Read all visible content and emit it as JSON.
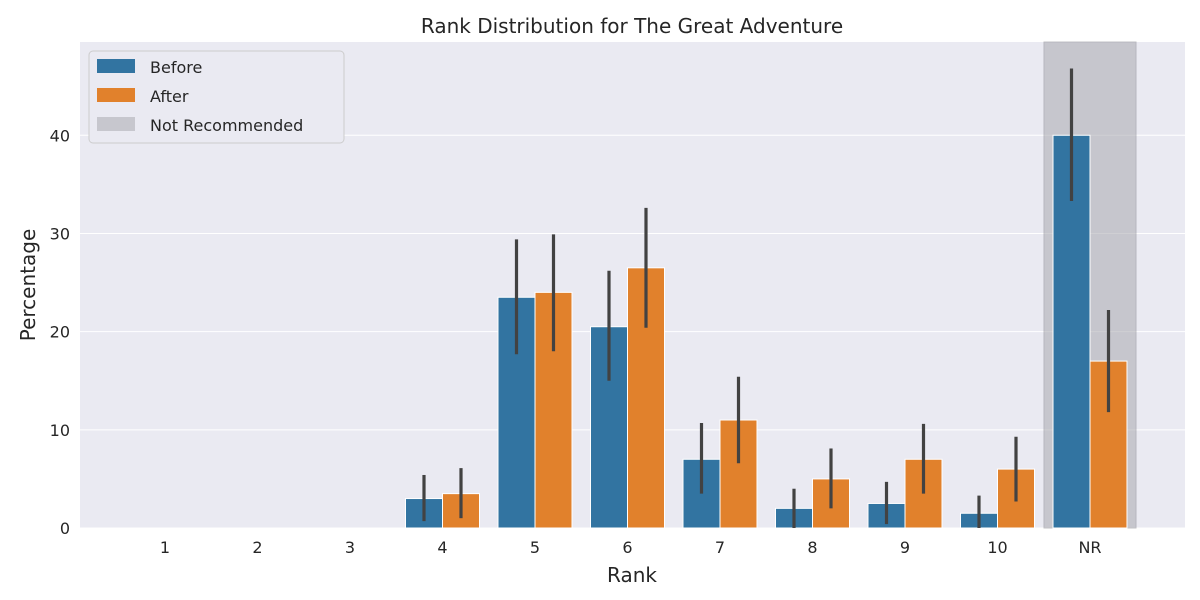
{
  "chart_data": {
    "type": "bar",
    "title": "Rank Distribution for The Great Adventure",
    "xlabel": "Rank",
    "ylabel": "Percentage",
    "categories": [
      "1",
      "2",
      "3",
      "4",
      "5",
      "6",
      "7",
      "8",
      "9",
      "10",
      "NR"
    ],
    "ylim": [
      0,
      49.5
    ],
    "yticks": [
      0,
      10,
      20,
      30,
      40
    ],
    "grid": true,
    "legend_position": "top-left",
    "series": [
      {
        "name": "Before",
        "color": "#3274a1",
        "values": [
          0,
          0,
          0,
          3.0,
          23.5,
          20.5,
          7.0,
          2.0,
          2.5,
          1.5,
          40.0
        ],
        "error_low": [
          0,
          0,
          0,
          0.7,
          17.7,
          15.0,
          3.5,
          0.0,
          0.4,
          0.0,
          33.3
        ],
        "error_high": [
          0,
          0,
          0,
          5.4,
          29.4,
          26.2,
          10.7,
          4.0,
          4.7,
          3.3,
          46.8
        ]
      },
      {
        "name": "After",
        "color": "#e1812c",
        "values": [
          0,
          0,
          0,
          3.5,
          24.0,
          26.5,
          11.0,
          5.0,
          7.0,
          6.0,
          17.0
        ],
        "error_low": [
          0,
          0,
          0,
          1.0,
          18.0,
          20.4,
          6.6,
          2.0,
          3.5,
          2.7,
          11.8
        ],
        "error_high": [
          0,
          0,
          0,
          6.1,
          29.9,
          32.6,
          15.4,
          8.1,
          10.6,
          9.3,
          22.2
        ]
      }
    ],
    "highlight": {
      "name": "Not Recommended",
      "category": "NR",
      "color": "#a9a9b0"
    }
  }
}
